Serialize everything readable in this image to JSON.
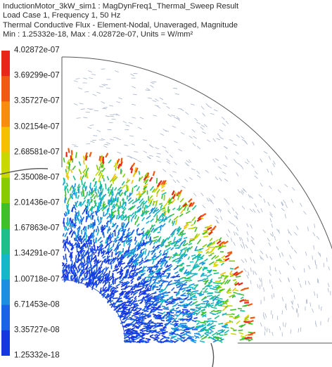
{
  "header": {
    "line1": "InductionMotor_3kW_sim1 : MagDynFreq1_Thermal_Sweep Result",
    "line2": "Load Case 1, Frequency 1, 50 Hz",
    "line3": "Thermal Conductive Flux - Element-Nodal, Unaveraged, Magnitude",
    "line4": "Min : 1.25332e-18, Max : 4.02872e-07, Units = W/mm²"
  },
  "legend": {
    "labels": [
      "4.02872e-07",
      "3.69299e-07",
      "3.35727e-07",
      "3.02154e-07",
      "2.68581e-07",
      "2.35008e-07",
      "2.01436e-07",
      "1.67863e-07",
      "1.34291e-07",
      "1.00718e-07",
      "6.71453e-08",
      "3.35727e-08",
      "1.25332e-18"
    ],
    "colors": [
      "#e8271a",
      "#f05a14",
      "#f88c0e",
      "#f5c000",
      "#c8d800",
      "#88cc00",
      "#3fbf2a",
      "#1fbf8c",
      "#15b8c8",
      "#1e8fe0",
      "#1b63e6",
      "#1638e0",
      "#0b16d6"
    ]
  },
  "colors": {
    "outline": "#555555",
    "hatch": "#a9b4c8"
  }
}
